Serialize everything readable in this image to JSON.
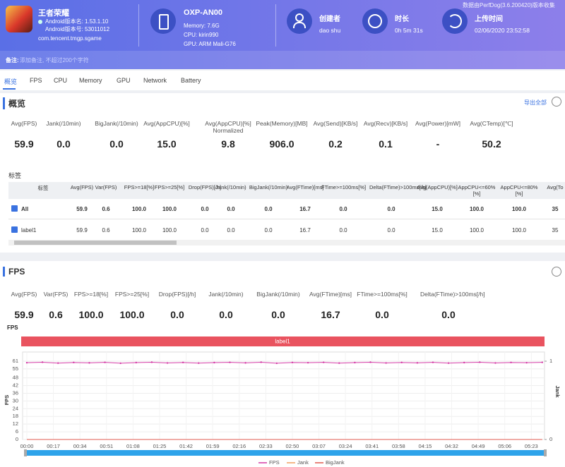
{
  "header": {
    "app_name": "王者荣耀",
    "version_name": "Android版本名: 1.53.1.10",
    "version_code": "Android版本号: 53011012",
    "package": "com.tencent.tmgp.sgame",
    "device": "OXP-AN00",
    "memory": "Memory: 7.6G",
    "cpu": "CPU: kirin990",
    "gpu": "GPU: ARM Mali-G76",
    "creator_label": "创建者",
    "creator": "dao shu",
    "duration_label": "时长",
    "duration": "0h 5m 31s",
    "upload_label": "上传时间",
    "upload": "02/06/2020 23:52:58",
    "source": "数据由PerfDog(3.6.200420)版本收集"
  },
  "note": {
    "label": "备注:",
    "placeholder": "添加备注, 不超过200个字符"
  },
  "tabs": [
    "概览",
    "FPS",
    "CPU",
    "Memory",
    "GPU",
    "Network",
    "Battery"
  ],
  "overview": {
    "title": "概览",
    "export": "导出全部",
    "metrics": [
      {
        "label": "Avg(FPS)",
        "value": "59.9"
      },
      {
        "label": "Jank(/10min)",
        "value": "0.0"
      },
      {
        "label": "BigJank(/10min)",
        "value": "0.0"
      },
      {
        "label": "Avg(AppCPU)[%]",
        "value": "15.0"
      },
      {
        "label": "Avg(AppCPU)[%] Normalized",
        "value": "9.8"
      },
      {
        "label": "Peak(Memory)[MB]",
        "value": "906.0"
      },
      {
        "label": "Avg(Send)[KB/s]",
        "value": "0.2"
      },
      {
        "label": "Avg(Recv)[KB/s]",
        "value": "0.1"
      },
      {
        "label": "Avg(Power)[mW]",
        "value": "-"
      },
      {
        "label": "Avg(CTemp)[℃]",
        "value": "50.2"
      }
    ],
    "tag_title": "标签",
    "table": {
      "columns": [
        "标签",
        "Avg(FPS)",
        "Var(FPS)",
        "FPS>=18[%]",
        "FPS>=25[%]",
        "Drop(FPS)[/h]",
        "Jank(/10min)",
        "BigJank(/10min)",
        "Avg(FTime)[ms]",
        "FTime>=100ms[%]",
        "Delta(FTime)>100ms[/h]",
        "Avg(AppCPU)[%]",
        "AppCPU<=60%[%]",
        "AppCPU<=80%[%]",
        "Avg(To"
      ],
      "rows": [
        [
          "All",
          "59.9",
          "0.6",
          "100.0",
          "100.0",
          "0.0",
          "0.0",
          "0.0",
          "16.7",
          "0.0",
          "0.0",
          "15.0",
          "100.0",
          "100.0",
          "35"
        ],
        [
          "label1",
          "59.9",
          "0.6",
          "100.0",
          "100.0",
          "0.0",
          "0.0",
          "0.0",
          "16.7",
          "0.0",
          "0.0",
          "15.0",
          "100.0",
          "100.0",
          "35"
        ]
      ]
    }
  },
  "fps_section": {
    "title": "FPS",
    "metrics": [
      {
        "label": "Avg(FPS)",
        "value": "59.9"
      },
      {
        "label": "Var(FPS)",
        "value": "0.6"
      },
      {
        "label": "FPS>=18[%]",
        "value": "100.0"
      },
      {
        "label": "FPS>=25[%]",
        "value": "100.0"
      },
      {
        "label": "Drop(FPS)[/h]",
        "value": "0.0"
      },
      {
        "label": "Jank(/10min)",
        "value": "0.0"
      },
      {
        "label": "BigJank(/10min)",
        "value": "0.0"
      },
      {
        "label": "Avg(FTime)[ms]",
        "value": "16.7"
      },
      {
        "label": "FTime>=100ms[%]",
        "value": "0.0"
      },
      {
        "label": "Delta(FTime)>100ms[/h]",
        "value": "0.0"
      }
    ]
  },
  "chart_data": {
    "type": "line",
    "title": "FPS",
    "ylabel": "FPS",
    "y2label": "Jank",
    "band_label": "label1",
    "x": [
      0,
      10,
      20,
      30,
      40,
      50,
      60,
      70,
      80,
      90,
      100,
      110,
      120,
      130,
      140,
      150,
      160,
      170,
      180,
      190,
      200,
      210,
      220,
      230,
      240,
      250,
      260,
      270,
      280,
      290,
      300,
      310,
      320,
      330
    ],
    "series": [
      {
        "name": "FPS",
        "color": "#d43ba6",
        "values": [
          59.8,
          60.2,
          59.5,
          60.0,
          59.7,
          60.1,
          59.4,
          59.9,
          60.2,
          59.6,
          60.0,
          59.5,
          59.9,
          60.1,
          59.7,
          60.2,
          59.4,
          60.0,
          59.8,
          60.1,
          59.5,
          59.9,
          60.2,
          59.6,
          60.0,
          59.7,
          60.1,
          59.5,
          59.9,
          60.2,
          59.6,
          60.0,
          59.8,
          60.1
        ]
      },
      {
        "name": "Jank",
        "color": "#f0a060",
        "axis": "y2",
        "values": [
          0,
          0,
          0,
          0,
          0,
          0,
          0,
          0,
          0,
          0,
          0,
          0,
          0,
          0,
          0,
          0,
          0,
          0,
          0,
          0,
          0,
          0,
          0,
          0,
          0,
          0,
          0,
          0,
          0,
          0,
          0,
          0,
          0,
          0
        ]
      },
      {
        "name": "BigJank",
        "color": "#e05a4f",
        "axis": "y2",
        "values": [
          0,
          0,
          0,
          0,
          0,
          0,
          0,
          0,
          0,
          0,
          0,
          0,
          0,
          0,
          0,
          0,
          0,
          0,
          0,
          0,
          0,
          0,
          0,
          0,
          0,
          0,
          0,
          0,
          0,
          0,
          0,
          0,
          0,
          0
        ]
      }
    ],
    "xlim": [
      0,
      331
    ],
    "xticks": [
      {
        "value": 0,
        "label": "00:00"
      },
      {
        "value": 17,
        "label": "00:17"
      },
      {
        "value": 34,
        "label": "00:34"
      },
      {
        "value": 51,
        "label": "00:51"
      },
      {
        "value": 68,
        "label": "01:08"
      },
      {
        "value": 85,
        "label": "01:25"
      },
      {
        "value": 102,
        "label": "01:42"
      },
      {
        "value": 119,
        "label": "01:59"
      },
      {
        "value": 136,
        "label": "02:16"
      },
      {
        "value": 153,
        "label": "02:33"
      },
      {
        "value": 170,
        "label": "02:50"
      },
      {
        "value": 187,
        "label": "03:07"
      },
      {
        "value": 204,
        "label": "03:24"
      },
      {
        "value": 221,
        "label": "03:41"
      },
      {
        "value": 238,
        "label": "03:58"
      },
      {
        "value": 255,
        "label": "04:15"
      },
      {
        "value": 272,
        "label": "04:32"
      },
      {
        "value": 289,
        "label": "04:49"
      },
      {
        "value": 306,
        "label": "05:06"
      },
      {
        "value": 323,
        "label": "05:23"
      }
    ],
    "ylim": [
      0,
      61
    ],
    "yticks": [
      0,
      6,
      12,
      18,
      24,
      30,
      36,
      42,
      48,
      55,
      61
    ],
    "y2lim": [
      0,
      1
    ],
    "y2ticks": [
      0,
      1
    ],
    "grid": true,
    "legend": "bottom"
  }
}
